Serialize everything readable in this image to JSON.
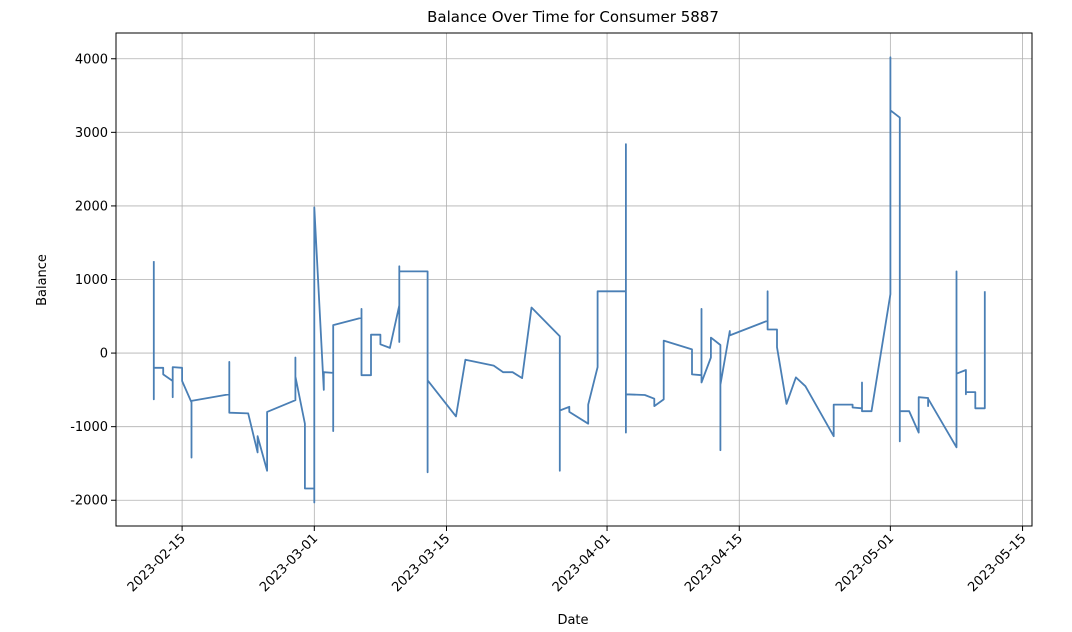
{
  "chart_data": {
    "type": "line",
    "title": "Balance Over Time for Consumer 5887",
    "xlabel": "Date",
    "ylabel": "Balance",
    "xlim": [
      "2023-02-08",
      "2023-05-16"
    ],
    "ylim": [
      -2350,
      4350
    ],
    "grid": true,
    "x_ticks": [
      "2023-02-15",
      "2023-03-01",
      "2023-03-15",
      "2023-04-01",
      "2023-04-15",
      "2023-05-01",
      "2023-05-15"
    ],
    "y_ticks": [
      -2000,
      -1000,
      0,
      1000,
      2000,
      3000,
      4000
    ],
    "line_color": "#4a7fb5",
    "series": [
      {
        "points": [
          [
            "2023-02-12",
            1250
          ],
          [
            "2023-02-12",
            -630
          ],
          [
            "2023-02-12",
            -200
          ],
          [
            "2023-02-13",
            -200
          ],
          [
            "2023-02-13",
            -290
          ],
          [
            "2023-02-14",
            -380
          ],
          [
            "2023-02-14",
            -600
          ],
          [
            "2023-02-14",
            -190
          ],
          [
            "2023-02-15",
            -200
          ],
          [
            "2023-02-15",
            -380
          ],
          [
            "2023-02-16",
            -670
          ],
          [
            "2023-02-16",
            -1420
          ],
          [
            "2023-02-16",
            -650
          ],
          [
            "2023-02-20",
            -560
          ],
          [
            "2023-02-20",
            -120
          ],
          [
            "2023-02-20",
            -810
          ],
          [
            "2023-02-22",
            -820
          ],
          [
            "2023-02-23",
            -1350
          ],
          [
            "2023-02-23",
            -1130
          ],
          [
            "2023-02-24",
            -1600
          ],
          [
            "2023-02-24",
            -800
          ],
          [
            "2023-02-27",
            -640
          ],
          [
            "2023-02-27",
            -60
          ],
          [
            "2023-02-27",
            -320
          ],
          [
            "2023-02-28",
            -960
          ],
          [
            "2023-02-28",
            -1840
          ],
          [
            "2023-03-01",
            -1840
          ],
          [
            "2023-03-01",
            -2030
          ],
          [
            "2023-03-01",
            1980
          ],
          [
            "2023-03-02",
            -500
          ],
          [
            "2023-03-02",
            -260
          ],
          [
            "2023-03-03",
            -270
          ],
          [
            "2023-03-03",
            -1060
          ],
          [
            "2023-03-03",
            380
          ],
          [
            "2023-03-06",
            480
          ],
          [
            "2023-03-06",
            600
          ],
          [
            "2023-03-06",
            -300
          ],
          [
            "2023-03-07",
            -300
          ],
          [
            "2023-03-07",
            250
          ],
          [
            "2023-03-08",
            250
          ],
          [
            "2023-03-08",
            120
          ],
          [
            "2023-03-09",
            70
          ],
          [
            "2023-03-10",
            650
          ],
          [
            "2023-03-10",
            150
          ],
          [
            "2023-03-10",
            1180
          ],
          [
            "2023-03-10",
            1110
          ],
          [
            "2023-03-13",
            1110
          ],
          [
            "2023-03-13",
            -1620
          ],
          [
            "2023-03-13",
            -370
          ],
          [
            "2023-03-16",
            -860
          ],
          [
            "2023-03-17",
            -90
          ],
          [
            "2023-03-20",
            -170
          ],
          [
            "2023-03-21",
            -260
          ],
          [
            "2023-03-22",
            -260
          ],
          [
            "2023-03-23",
            -340
          ],
          [
            "2023-03-24",
            620
          ],
          [
            "2023-03-27",
            230
          ],
          [
            "2023-03-27",
            -1600
          ],
          [
            "2023-03-27",
            -780
          ],
          [
            "2023-03-28",
            -730
          ],
          [
            "2023-03-28",
            -800
          ],
          [
            "2023-03-30",
            -960
          ],
          [
            "2023-03-30",
            -700
          ],
          [
            "2023-03-31",
            -190
          ],
          [
            "2023-03-31",
            840
          ],
          [
            "2023-04-03",
            840
          ],
          [
            "2023-04-03",
            2840
          ],
          [
            "2023-04-03",
            -1080
          ],
          [
            "2023-04-03",
            -560
          ],
          [
            "2023-04-05",
            -570
          ],
          [
            "2023-04-06",
            -620
          ],
          [
            "2023-04-06",
            -720
          ],
          [
            "2023-04-07",
            -630
          ],
          [
            "2023-04-07",
            170
          ],
          [
            "2023-04-10",
            50
          ],
          [
            "2023-04-10",
            -290
          ],
          [
            "2023-04-11",
            -300
          ],
          [
            "2023-04-11",
            600
          ],
          [
            "2023-04-11",
            -400
          ],
          [
            "2023-04-12",
            -60
          ],
          [
            "2023-04-12",
            210
          ],
          [
            "2023-04-13",
            110
          ],
          [
            "2023-04-13",
            -1320
          ],
          [
            "2023-04-13",
            -430
          ],
          [
            "2023-04-14",
            300
          ],
          [
            "2023-04-14",
            240
          ],
          [
            "2023-04-18",
            440
          ],
          [
            "2023-04-18",
            840
          ],
          [
            "2023-04-18",
            320
          ],
          [
            "2023-04-19",
            320
          ],
          [
            "2023-04-19",
            80
          ],
          [
            "2023-04-20",
            -690
          ],
          [
            "2023-04-21",
            -330
          ],
          [
            "2023-04-22",
            -450
          ],
          [
            "2023-04-25",
            -1130
          ],
          [
            "2023-04-25",
            -700
          ],
          [
            "2023-04-27",
            -700
          ],
          [
            "2023-04-27",
            -740
          ],
          [
            "2023-04-28",
            -750
          ],
          [
            "2023-04-28",
            -400
          ],
          [
            "2023-04-28",
            -790
          ],
          [
            "2023-04-29",
            -790
          ],
          [
            "2023-05-01",
            800
          ],
          [
            "2023-05-01",
            4020
          ],
          [
            "2023-05-01",
            3300
          ],
          [
            "2023-05-02",
            3200
          ],
          [
            "2023-05-02",
            -1200
          ],
          [
            "2023-05-02",
            -790
          ],
          [
            "2023-05-03",
            -790
          ],
          [
            "2023-05-04",
            -1080
          ],
          [
            "2023-05-04",
            -600
          ],
          [
            "2023-05-05",
            -610
          ],
          [
            "2023-05-05",
            -720
          ],
          [
            "2023-05-05",
            -620
          ],
          [
            "2023-05-08",
            -1280
          ],
          [
            "2023-05-08",
            1110
          ],
          [
            "2023-05-08",
            -280
          ],
          [
            "2023-05-09",
            -230
          ],
          [
            "2023-05-09",
            -560
          ],
          [
            "2023-05-09",
            -530
          ],
          [
            "2023-05-10",
            -530
          ],
          [
            "2023-05-10",
            -750
          ],
          [
            "2023-05-11",
            -750
          ],
          [
            "2023-05-11",
            840
          ]
        ]
      }
    ]
  }
}
